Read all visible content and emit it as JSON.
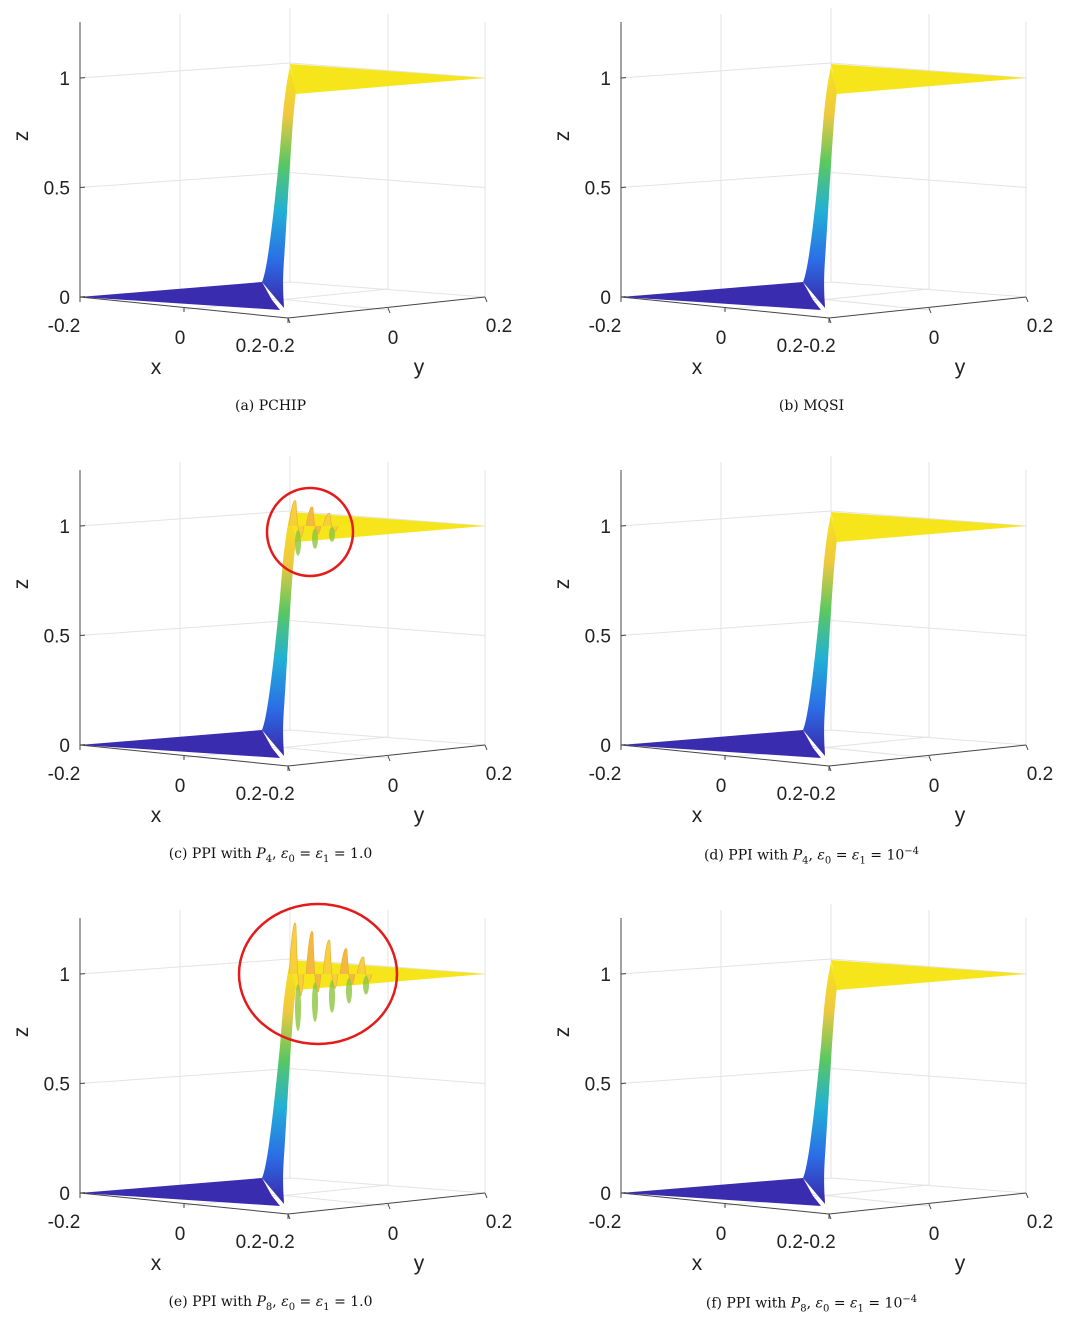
{
  "chart_data": [
    {
      "type": "surface",
      "panel": "a",
      "caption": "(a) PCHIP",
      "xlabel": "x",
      "ylabel": "y",
      "zlabel": "z",
      "xticks": [
        "-0.2",
        "0",
        "0.2"
      ],
      "yticks": [
        "-0.2",
        "0",
        "0.2"
      ],
      "zticks": [
        "0",
        "0.5",
        "1"
      ],
      "xlim": [
        -0.2,
        0.2
      ],
      "ylim": [
        -0.2,
        0.2
      ],
      "zlim": [
        0,
        1.25
      ],
      "step_from": 0,
      "step_to": 1,
      "oscillation": {
        "count": 0,
        "amplitude": 0
      },
      "highlight_circle": false,
      "colormap": [
        "#3a25a8",
        "#2b6ee6",
        "#22b0d6",
        "#5ac860",
        "#f0c840",
        "#f5e51a"
      ]
    },
    {
      "type": "surface",
      "panel": "b",
      "caption": "(b) MQSI",
      "xlabel": "x",
      "ylabel": "y",
      "zlabel": "z",
      "xticks": [
        "-0.2",
        "0",
        "0.2"
      ],
      "yticks": [
        "-0.2",
        "0",
        "0.2"
      ],
      "zticks": [
        "0",
        "0.5",
        "1"
      ],
      "xlim": [
        -0.2,
        0.2
      ],
      "ylim": [
        -0.2,
        0.2
      ],
      "zlim": [
        0,
        1.25
      ],
      "step_from": 0,
      "step_to": 1,
      "oscillation": {
        "count": 0,
        "amplitude": 0
      },
      "highlight_circle": false,
      "colormap": [
        "#3a25a8",
        "#2b6ee6",
        "#22b0d6",
        "#5ac860",
        "#f0c840",
        "#f5e51a"
      ]
    },
    {
      "type": "surface",
      "panel": "c",
      "caption_parts": {
        "prefix": "(c) PPI with ",
        "space": "P",
        "space_sub": "4",
        "eps": "ε",
        "value": "= 1.0",
        "exp": ""
      },
      "xlabel": "x",
      "ylabel": "y",
      "zlabel": "z",
      "xticks": [
        "-0.2",
        "0",
        "0.2"
      ],
      "yticks": [
        "-0.2",
        "0",
        "0.2"
      ],
      "zticks": [
        "0",
        "0.5",
        "1"
      ],
      "xlim": [
        -0.2,
        0.2
      ],
      "ylim": [
        -0.2,
        0.2
      ],
      "zlim": [
        0,
        1.25
      ],
      "step_from": 0,
      "step_to": 1,
      "oscillation": {
        "count": 3,
        "amplitude": 0.14
      },
      "highlight_circle": true,
      "colormap": [
        "#3a25a8",
        "#2b6ee6",
        "#22b0d6",
        "#5ac860",
        "#f0c840",
        "#f5e51a"
      ]
    },
    {
      "type": "surface",
      "panel": "d",
      "caption_parts": {
        "prefix": "(d) PPI with ",
        "space": "P",
        "space_sub": "4",
        "eps": "ε",
        "value": "= 10",
        "exp": "−4"
      },
      "xlabel": "x",
      "ylabel": "y",
      "zlabel": "z",
      "xticks": [
        "-0.2",
        "0",
        "0.2"
      ],
      "yticks": [
        "-0.2",
        "0",
        "0.2"
      ],
      "zticks": [
        "0",
        "0.5",
        "1"
      ],
      "xlim": [
        -0.2,
        0.2
      ],
      "ylim": [
        -0.2,
        0.2
      ],
      "zlim": [
        0,
        1.25
      ],
      "step_from": 0,
      "step_to": 1,
      "oscillation": {
        "count": 0,
        "amplitude": 0
      },
      "highlight_circle": false,
      "colormap": [
        "#3a25a8",
        "#2b6ee6",
        "#22b0d6",
        "#5ac860",
        "#f0c840",
        "#f5e51a"
      ]
    },
    {
      "type": "surface",
      "panel": "e",
      "caption_parts": {
        "prefix": "(e) PPI with ",
        "space": "P",
        "space_sub": "8",
        "eps": "ε",
        "value": "= 1.0",
        "exp": ""
      },
      "xlabel": "x",
      "ylabel": "y",
      "zlabel": "z",
      "xticks": [
        "-0.2",
        "0",
        "0.2"
      ],
      "yticks": [
        "-0.2",
        "0",
        "0.2"
      ],
      "zticks": [
        "0",
        "0.5",
        "1"
      ],
      "xlim": [
        -0.2,
        0.2
      ],
      "ylim": [
        -0.2,
        0.2
      ],
      "zlim": [
        0,
        1.25
      ],
      "step_from": 0,
      "step_to": 1,
      "oscillation": {
        "count": 5,
        "amplitude": 0.28
      },
      "highlight_circle": true,
      "colormap": [
        "#3a25a8",
        "#2b6ee6",
        "#22b0d6",
        "#5ac860",
        "#f0c840",
        "#f5e51a"
      ]
    },
    {
      "type": "surface",
      "panel": "f",
      "caption_parts": {
        "prefix": "(f) PPI with ",
        "space": "P",
        "space_sub": "8",
        "eps": "ε",
        "value": "= 10",
        "exp": "−4"
      },
      "xlabel": "x",
      "ylabel": "y",
      "zlabel": "z",
      "xticks": [
        "-0.2",
        "0",
        "0.2"
      ],
      "yticks": [
        "-0.2",
        "0",
        "0.2"
      ],
      "zticks": [
        "0",
        "0.5",
        "1"
      ],
      "xlim": [
        -0.2,
        0.2
      ],
      "ylim": [
        -0.2,
        0.2
      ],
      "zlim": [
        0,
        1.25
      ],
      "step_from": 0,
      "step_to": 1,
      "oscillation": {
        "count": 0,
        "amplitude": 0
      },
      "highlight_circle": false,
      "colormap": [
        "#3a25a8",
        "#2b6ee6",
        "#22b0d6",
        "#5ac860",
        "#f0c840",
        "#f5e51a"
      ]
    }
  ]
}
